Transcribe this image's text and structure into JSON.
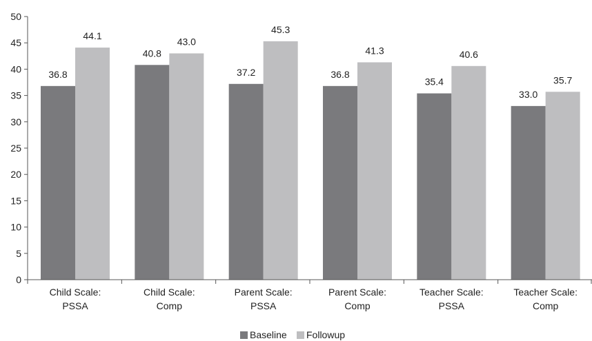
{
  "chart_data": {
    "type": "bar",
    "categories": [
      [
        "Child Scale:",
        "PSSA"
      ],
      [
        "Child Scale:",
        "Comp"
      ],
      [
        "Parent Scale:",
        "PSSA"
      ],
      [
        "Parent Scale:",
        "Comp"
      ],
      [
        "Teacher Scale:",
        "PSSA"
      ],
      [
        "Teacher Scale:",
        "Comp"
      ]
    ],
    "series": [
      {
        "name": "Baseline",
        "color": "#7a7a7d",
        "values": [
          36.8,
          40.8,
          37.2,
          36.8,
          35.4,
          33.0
        ],
        "labels": [
          "36.8",
          "40.8",
          "37.2",
          "36.8",
          "35.4",
          "33.0"
        ]
      },
      {
        "name": "Followup",
        "color": "#bebec0",
        "values": [
          44.1,
          43.0,
          45.3,
          41.3,
          40.6,
          35.7
        ],
        "labels": [
          "44.1",
          "43.0",
          "45.3",
          "41.3",
          "40.6",
          "35.7"
        ]
      }
    ],
    "ylim": [
      0,
      50
    ],
    "yticks": [
      "0",
      "5",
      "10",
      "15",
      "20",
      "25",
      "30",
      "35",
      "40",
      "45",
      "50"
    ],
    "grid": false,
    "legend": "bottom-center",
    "title": "",
    "xlabel": "",
    "ylabel": ""
  }
}
